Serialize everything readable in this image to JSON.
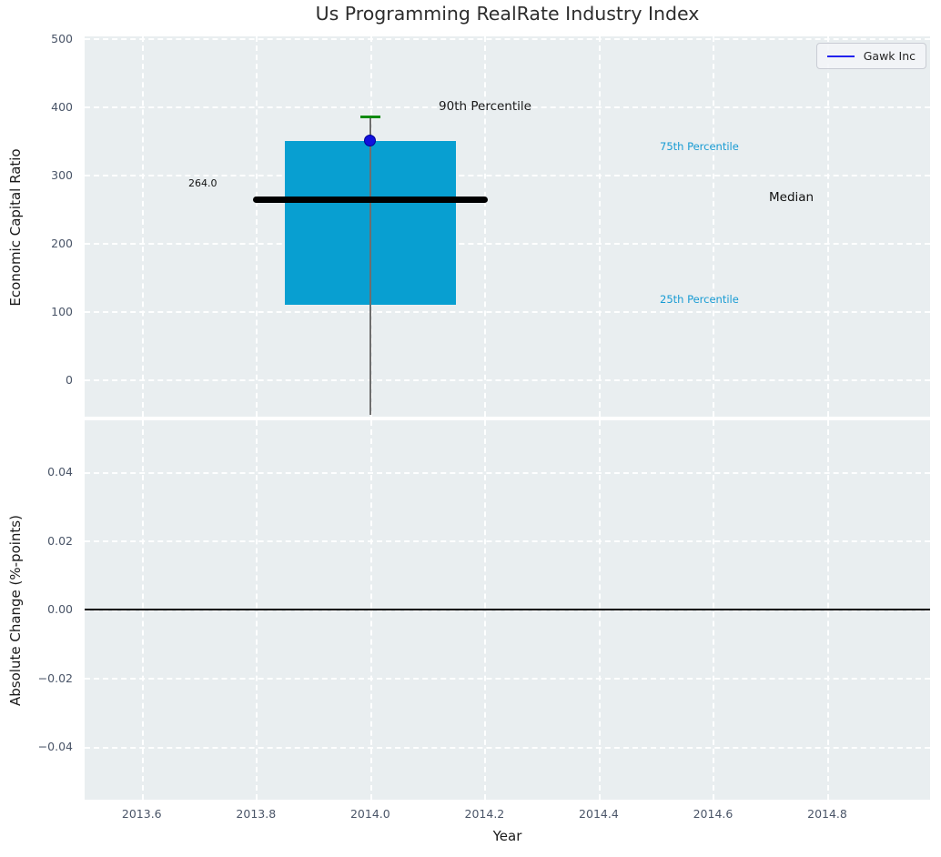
{
  "chart_data": {
    "type": "boxplot",
    "title": "Us Programming RealRate Industry Index",
    "x_axis": {
      "label": "Year",
      "lim": [
        2013.5,
        2014.98
      ],
      "ticks": [
        {
          "v": 2013.6,
          "label": "2013.6"
        },
        {
          "v": 2013.8,
          "label": "2013.8"
        },
        {
          "v": 2014.0,
          "label": "2014.0"
        },
        {
          "v": 2014.2,
          "label": "2014.2"
        },
        {
          "v": 2014.4,
          "label": "2014.4"
        },
        {
          "v": 2014.6,
          "label": "2014.6"
        },
        {
          "v": 2014.8,
          "label": "2014.8"
        }
      ]
    },
    "top_panel": {
      "ylabel": "Economic Capital Ratio",
      "ylim": [
        -54,
        503
      ],
      "yticks": [
        {
          "v": 500,
          "label": "500"
        },
        {
          "v": 400,
          "label": "400"
        },
        {
          "v": 300,
          "label": "300"
        },
        {
          "v": 200,
          "label": "200"
        },
        {
          "v": 100,
          "label": "100"
        },
        {
          "v": 0,
          "label": "0"
        }
      ],
      "box": {
        "x": 2014.0,
        "half_width": 0.15,
        "median_half_width": 0.205,
        "p25": 110,
        "median": 264,
        "p75": 350,
        "p90": 385,
        "whisker_low_end": -52
      },
      "series": [
        {
          "name": "Gawk Inc",
          "x": [
            2014.0
          ],
          "y": [
            350
          ]
        }
      ],
      "annotations": [
        {
          "id": "p90",
          "text": "90th Percentile"
        },
        {
          "id": "p75",
          "text": "75th Percentile"
        },
        {
          "id": "median",
          "text": "Median"
        },
        {
          "id": "p25",
          "text": "25th Percentile"
        },
        {
          "id": "median_value",
          "text": "264.0"
        }
      ]
    },
    "bottom_panel": {
      "ylabel": "Absolute Change (%-points)",
      "ylim": [
        -0.0554,
        0.0551
      ],
      "yticks": [
        {
          "v": 0.04,
          "label": "0.04"
        },
        {
          "v": 0.02,
          "label": "0.02"
        },
        {
          "v": 0.0,
          "label": "0.00"
        },
        {
          "v": -0.02,
          "label": "−0.02"
        },
        {
          "v": -0.04,
          "label": "−0.04"
        }
      ],
      "zero_line": 0.0
    },
    "legend": {
      "position": "upper right",
      "entries": [
        {
          "label": "Gawk Inc",
          "color": "#2222ee"
        }
      ]
    },
    "colors": {
      "box_fill": "#089fd1",
      "median_line": "#000000",
      "p90_cap": "#0f8a0f",
      "whisker": "#6e6e6e",
      "marker": "#1111dd",
      "legend_line": "#2222ee",
      "percentile_text": "#189bd3",
      "axes_bg": "#e9eef0",
      "grid": "#ffffff",
      "tick_text": "#4a5568"
    }
  }
}
